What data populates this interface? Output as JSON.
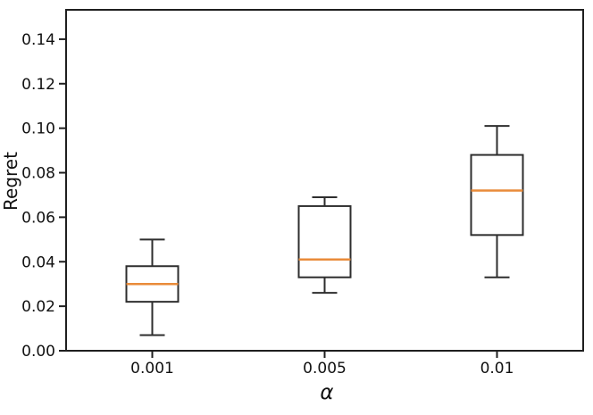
{
  "figure": {
    "background": "#ffffff"
  },
  "chart_data": {
    "type": "boxplot",
    "title": "",
    "xlabel": "α",
    "ylabel": "Regret",
    "categories": [
      "0.001",
      "0.005",
      "0.01"
    ],
    "ylim": [
      0,
      0.1532
    ],
    "ytick_values": [
      0.0,
      0.02,
      0.04,
      0.06,
      0.08,
      0.1,
      0.12,
      0.14
    ],
    "ytick_labels": [
      "0.00",
      "0.02",
      "0.04",
      "0.06",
      "0.08",
      "0.10",
      "0.12",
      "0.14"
    ],
    "grid": false,
    "legend": null,
    "boxes": [
      {
        "category": "0.001",
        "whisker_low": 0.007,
        "q1": 0.022,
        "median": 0.03,
        "q3": 0.038,
        "whisker_high": 0.05
      },
      {
        "category": "0.005",
        "whisker_low": 0.026,
        "q1": 0.033,
        "median": 0.041,
        "q3": 0.065,
        "whisker_high": 0.069
      },
      {
        "category": "0.01",
        "whisker_low": 0.033,
        "q1": 0.052,
        "median": 0.072,
        "q3": 0.088,
        "whisker_high": 0.101
      }
    ],
    "colors": {
      "box_edge": "#2e2e2e",
      "median": "#e98b3a",
      "spine": "#1f1f1f",
      "text": "#111111"
    }
  }
}
